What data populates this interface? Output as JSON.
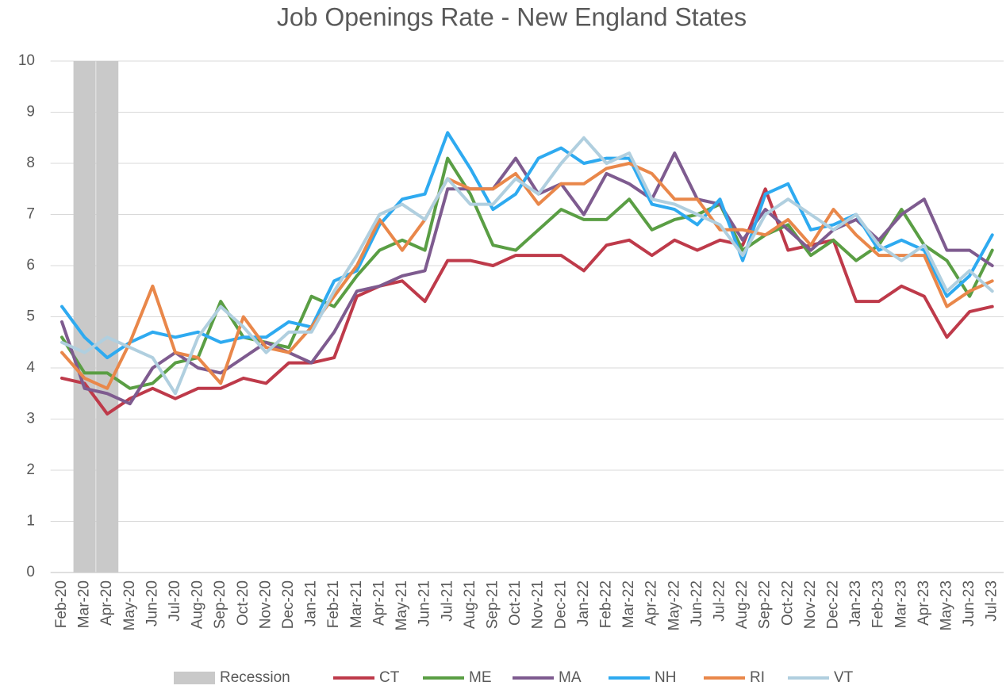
{
  "chart_data": {
    "type": "line",
    "title": "Job Openings Rate - New England States",
    "categories": [
      "Feb-20",
      "Mar-20",
      "Apr-20",
      "May-20",
      "Jun-20",
      "Jul-20",
      "Aug-20",
      "Sep-20",
      "Oct-20",
      "Nov-20",
      "Dec-20",
      "Jan-21",
      "Feb-21",
      "Mar-21",
      "Apr-21",
      "May-21",
      "Jun-21",
      "Jul-21",
      "Aug-21",
      "Sep-21",
      "Oct-21",
      "Nov-21",
      "Dec-21",
      "Jan-22",
      "Feb-22",
      "Mar-22",
      "Apr-22",
      "May-22",
      "Jun-22",
      "Jul-22",
      "Aug-22",
      "Sep-22",
      "Oct-22",
      "Nov-22",
      "Dec-22",
      "Jan-23",
      "Feb-23",
      "Mar-23",
      "Apr-23",
      "May-23",
      "Jun-23",
      "Jul-23"
    ],
    "ylim": [
      0,
      10
    ],
    "yticks": [
      0,
      1,
      2,
      3,
      4,
      5,
      6,
      7,
      8,
      9,
      10
    ],
    "grid": true,
    "legend": "bottom",
    "series": [
      {
        "name": "Recession",
        "type": "bar",
        "color": "#c9c9c9",
        "values": [
          null,
          10,
          10,
          null,
          null,
          null,
          null,
          null,
          null,
          null,
          null,
          null,
          null,
          null,
          null,
          null,
          null,
          null,
          null,
          null,
          null,
          null,
          null,
          null,
          null,
          null,
          null,
          null,
          null,
          null,
          null,
          null,
          null,
          null,
          null,
          null,
          null,
          null,
          null,
          null,
          null,
          null
        ]
      },
      {
        "name": "CT",
        "type": "line",
        "color": "#be3a4a",
        "values": [
          3.8,
          3.7,
          3.1,
          3.4,
          3.6,
          3.4,
          3.6,
          3.6,
          3.8,
          3.7,
          4.1,
          4.1,
          4.2,
          5.4,
          5.6,
          5.7,
          5.3,
          6.1,
          6.1,
          6.0,
          6.2,
          6.2,
          6.2,
          5.9,
          6.4,
          6.5,
          6.2,
          6.5,
          6.3,
          6.5,
          6.4,
          7.5,
          6.3,
          6.4,
          6.5,
          5.3,
          5.3,
          5.6,
          5.4,
          4.6,
          5.1,
          5.2
        ]
      },
      {
        "name": "ME",
        "type": "line",
        "color": "#5a9e44",
        "values": [
          4.6,
          3.9,
          3.9,
          3.6,
          3.7,
          4.1,
          4.2,
          5.3,
          4.6,
          4.5,
          4.4,
          5.4,
          5.2,
          5.8,
          6.3,
          6.5,
          6.3,
          8.1,
          7.4,
          6.4,
          6.3,
          6.7,
          7.1,
          6.9,
          6.9,
          7.3,
          6.7,
          6.9,
          7.0,
          7.2,
          6.3,
          6.6,
          6.8,
          6.2,
          6.5,
          6.1,
          6.4,
          7.1,
          6.4,
          6.1,
          5.4,
          6.3
        ]
      },
      {
        "name": "MA",
        "type": "line",
        "color": "#7e5b8f",
        "values": [
          4.9,
          3.6,
          3.5,
          3.3,
          4.0,
          4.3,
          4.0,
          3.9,
          4.2,
          4.5,
          4.3,
          4.1,
          4.7,
          5.5,
          5.6,
          5.8,
          5.9,
          7.5,
          7.5,
          7.5,
          8.1,
          7.4,
          7.6,
          7.0,
          7.8,
          7.6,
          7.3,
          8.2,
          7.3,
          7.2,
          6.5,
          7.1,
          6.7,
          6.3,
          6.7,
          6.9,
          6.5,
          7.0,
          7.3,
          6.3,
          6.3,
          6.0
        ]
      },
      {
        "name": "NH",
        "type": "line",
        "color": "#2eaaf0",
        "values": [
          5.2,
          4.6,
          4.2,
          4.5,
          4.7,
          4.6,
          4.7,
          4.5,
          4.6,
          4.6,
          4.9,
          4.8,
          5.7,
          5.9,
          6.8,
          7.3,
          7.4,
          8.6,
          7.9,
          7.1,
          7.4,
          8.1,
          8.3,
          8.0,
          8.1,
          8.1,
          7.2,
          7.1,
          6.8,
          7.3,
          6.1,
          7.4,
          7.6,
          6.7,
          6.8,
          7.0,
          6.3,
          6.5,
          6.3,
          5.4,
          5.8,
          6.6
        ]
      },
      {
        "name": "RI",
        "type": "line",
        "color": "#e9874a",
        "values": [
          4.3,
          3.8,
          3.6,
          4.5,
          5.6,
          4.3,
          4.2,
          3.7,
          5.0,
          4.4,
          4.3,
          4.8,
          5.4,
          6.0,
          6.9,
          6.3,
          6.9,
          7.7,
          7.5,
          7.5,
          7.8,
          7.2,
          7.6,
          7.6,
          7.9,
          8.0,
          7.8,
          7.3,
          7.3,
          6.7,
          6.7,
          6.6,
          6.9,
          6.4,
          7.1,
          6.6,
          6.2,
          6.2,
          6.2,
          5.2,
          5.5,
          5.7
        ]
      },
      {
        "name": "VT",
        "type": "line",
        "color": "#b0cfdf",
        "values": [
          4.5,
          4.3,
          4.6,
          4.4,
          4.2,
          3.5,
          4.6,
          5.2,
          4.8,
          4.3,
          4.7,
          4.7,
          5.5,
          6.2,
          7.0,
          7.2,
          6.9,
          7.7,
          7.2,
          7.2,
          7.7,
          7.4,
          8.0,
          8.5,
          8.0,
          8.2,
          7.3,
          7.2,
          7.0,
          6.8,
          6.2,
          7.0,
          7.3,
          7.0,
          6.7,
          7.0,
          6.4,
          6.1,
          6.4,
          5.5,
          5.9,
          5.5
        ]
      }
    ]
  }
}
